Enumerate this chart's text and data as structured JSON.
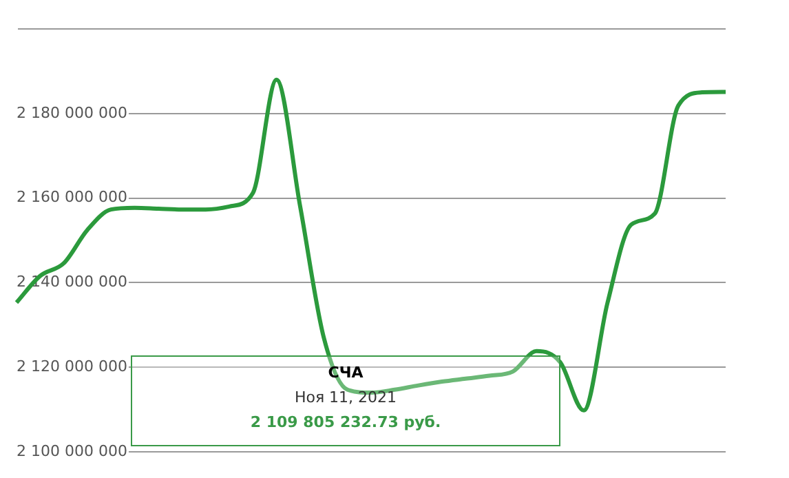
{
  "chart_data": {
    "type": "line",
    "categories": [
      null,
      null,
      null,
      null,
      null,
      null,
      null,
      null,
      null,
      null,
      null,
      null,
      null,
      null,
      null,
      null,
      null,
      null,
      null,
      null,
      null,
      null,
      null,
      null,
      null,
      null,
      null,
      null,
      null,
      null,
      null
    ],
    "series": [
      {
        "color": "#2b9a3c",
        "values": [
          2135300000,
          2141600000,
          2144600000,
          2152500000,
          2157300000,
          2157700000,
          2157500000,
          2157300000,
          2157300000,
          2158000000,
          2161200000,
          2188000000,
          2158000000,
          2127000000,
          2114700000,
          2114000000,
          2114700000,
          2115700000,
          2116600000,
          2117300000,
          2118000000,
          2119000000,
          2123800000,
          2121200000,
          2109800000,
          2135200000,
          2153700000,
          2156300000,
          2181900000,
          2185000000,
          2185100000
        ]
      }
    ],
    "ylim": [
      2100000000,
      2200000000
    ],
    "yticks": [
      {
        "value": 2100000000,
        "label": "2 100 000 000"
      },
      {
        "value": 2120000000,
        "label": "2 120 000 000"
      },
      {
        "value": 2140000000,
        "label": "2 140 000 000"
      },
      {
        "value": 2160000000,
        "label": "2 160 000 000"
      },
      {
        "value": 2180000000,
        "label": "2 180 000 000"
      },
      {
        "value": 2200000000,
        "label": null
      }
    ],
    "grid": "y",
    "marker": "none",
    "line_style": "solid",
    "tick_labels": "y",
    "annotations": [
      "СЧА",
      "Ноя 11, 2021",
      "2 109 805 232.73 руб."
    ]
  }
}
